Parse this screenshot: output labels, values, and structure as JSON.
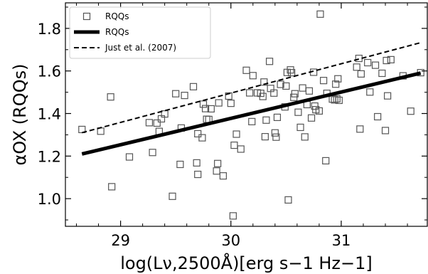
{
  "chart_data": {
    "type": "scatter",
    "xlabel": "log(Lν,2500Å)[erg s−1 Hz−1]",
    "ylabel": "αOX (RQQs)",
    "xlim": [
      28.5,
      31.78
    ],
    "ylim": [
      0.87,
      1.92
    ],
    "xticks": [
      29,
      30,
      31
    ],
    "xtick_labels": [
      "29",
      "30",
      "31"
    ],
    "yticks": [
      1.0,
      1.2,
      1.4,
      1.6,
      1.8
    ],
    "ytick_labels": [
      "1.0",
      "1.2",
      "1.4",
      "1.6",
      "1.8"
    ],
    "grid": false,
    "legend_position": "top-left",
    "series": [
      {
        "name": "RQQs",
        "kind": "scatter",
        "marker": "open-square",
        "color": "#555555",
        "points": [
          [
            28.65,
            1.325
          ],
          [
            28.82,
            1.317
          ],
          [
            28.91,
            1.478
          ],
          [
            28.92,
            1.056
          ],
          [
            29.08,
            1.196
          ],
          [
            29.26,
            1.357
          ],
          [
            29.29,
            1.217
          ],
          [
            29.33,
            1.355
          ],
          [
            29.35,
            1.316
          ],
          [
            29.37,
            1.375
          ],
          [
            29.4,
            1.398
          ],
          [
            29.47,
            1.011
          ],
          [
            29.5,
            1.493
          ],
          [
            29.54,
            1.161
          ],
          [
            29.55,
            1.332
          ],
          [
            29.58,
            1.485
          ],
          [
            29.66,
            1.526
          ],
          [
            29.69,
            1.168
          ],
          [
            29.7,
            1.114
          ],
          [
            29.7,
            1.305
          ],
          [
            29.74,
            1.286
          ],
          [
            29.75,
            1.444
          ],
          [
            29.77,
            1.423
          ],
          [
            29.78,
            1.373
          ],
          [
            29.8,
            1.372
          ],
          [
            29.82,
            1.422
          ],
          [
            29.87,
            1.13
          ],
          [
            29.88,
            1.165
          ],
          [
            29.89,
            1.45
          ],
          [
            29.93,
            1.107
          ],
          [
            29.98,
            1.482
          ],
          [
            30.0,
            1.448
          ],
          [
            30.02,
            0.919
          ],
          [
            30.03,
            1.251
          ],
          [
            30.05,
            1.303
          ],
          [
            30.09,
            1.233
          ],
          [
            30.14,
            1.603
          ],
          [
            30.17,
            1.497
          ],
          [
            30.19,
            1.362
          ],
          [
            30.2,
            1.578
          ],
          [
            30.24,
            1.497
          ],
          [
            30.27,
            1.495
          ],
          [
            30.29,
            1.48
          ],
          [
            30.3,
            1.548
          ],
          [
            30.31,
            1.291
          ],
          [
            30.32,
            1.369
          ],
          [
            30.35,
            1.645
          ],
          [
            30.36,
            1.518
          ],
          [
            30.39,
            1.496
          ],
          [
            30.4,
            1.309
          ],
          [
            30.41,
            1.289
          ],
          [
            30.42,
            1.382
          ],
          [
            30.45,
            1.537
          ],
          [
            30.49,
            1.431
          ],
          [
            30.5,
            1.529
          ],
          [
            30.51,
            1.593
          ],
          [
            30.52,
            0.994
          ],
          [
            30.54,
            1.605
          ],
          [
            30.55,
            1.592
          ],
          [
            30.57,
            1.476
          ],
          [
            30.58,
            1.493
          ],
          [
            30.61,
            1.406
          ],
          [
            30.63,
            1.335
          ],
          [
            30.65,
            1.52
          ],
          [
            30.67,
            1.29
          ],
          [
            30.69,
            1.442
          ],
          [
            30.71,
            1.506
          ],
          [
            30.73,
            1.379
          ],
          [
            30.75,
            1.594
          ],
          [
            30.76,
            1.435
          ],
          [
            30.77,
            1.418
          ],
          [
            30.8,
            1.412
          ],
          [
            30.81,
            1.867
          ],
          [
            30.84,
            1.555
          ],
          [
            30.86,
            1.178
          ],
          [
            30.87,
            1.495
          ],
          [
            30.92,
            1.468
          ],
          [
            30.94,
            1.464
          ],
          [
            30.95,
            1.538
          ],
          [
            30.96,
            1.469
          ],
          [
            30.97,
            1.563
          ],
          [
            30.98,
            1.462
          ],
          [
            31.14,
            1.618
          ],
          [
            31.16,
            1.659
          ],
          [
            31.17,
            1.327
          ],
          [
            31.18,
            1.586
          ],
          [
            31.24,
            1.639
          ],
          [
            31.26,
            1.501
          ],
          [
            31.31,
            1.627
          ],
          [
            31.33,
            1.385
          ],
          [
            31.37,
            1.589
          ],
          [
            31.4,
            1.32
          ],
          [
            31.41,
            1.649
          ],
          [
            31.42,
            1.483
          ],
          [
            31.45,
            1.653
          ],
          [
            31.56,
            1.577
          ],
          [
            31.63,
            1.411
          ],
          [
            31.72,
            1.592
          ]
        ]
      },
      {
        "name": "RQQs",
        "kind": "line",
        "style": "solid",
        "color": "#000000",
        "x": [
          28.65,
          31.72
        ],
        "y": [
          1.21,
          1.59
        ]
      },
      {
        "name": "Just et al. (2007)",
        "kind": "line",
        "style": "dashed",
        "color": "#000000",
        "x": [
          28.65,
          31.72
        ],
        "y": [
          1.31,
          1.733
        ]
      }
    ]
  }
}
